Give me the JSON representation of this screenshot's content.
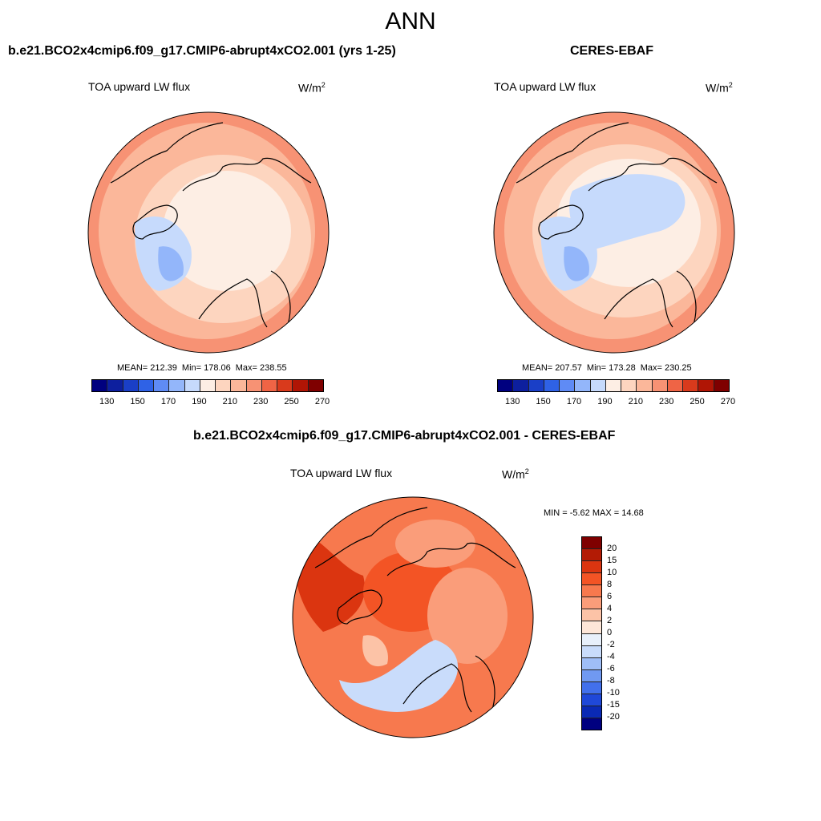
{
  "figure": {
    "season": "ANN"
  },
  "panels": {
    "top_left": {
      "title": "b.e21.BCO2x4cmip6.f09_g17.CMIP6-abrupt4xCO2.001 (yrs 1-25)",
      "variable": "TOA upward LW flux",
      "units_base": "W/m",
      "units_exp": "2",
      "stats": {
        "mean": "MEAN= 212.39",
        "min": "Min= 178.06",
        "max": "Max= 238.55"
      }
    },
    "top_right": {
      "title": "CERES-EBAF",
      "variable": "TOA upward LW flux",
      "units_base": "W/m",
      "units_exp": "2",
      "stats": {
        "mean": "MEAN= 207.57",
        "min": "Min= 173.28",
        "max": "Max= 230.25"
      }
    },
    "bottom": {
      "title": "b.e21.BCO2x4cmip6.f09_g17.CMIP6-abrupt4xCO2.001 - CERES-EBAF",
      "variable": "TOA upward LW flux",
      "units_base": "W/m",
      "units_exp": "2",
      "minmax": "MIN =  -5.62 MAX =  14.68"
    }
  },
  "abs_colorbar": {
    "labels": [
      "130",
      "150",
      "170",
      "190",
      "210",
      "230",
      "250",
      "270"
    ],
    "colors": [
      "#00007f",
      "#0d1f9e",
      "#1a3fc7",
      "#2f62e6",
      "#5f8bf5",
      "#93b6fa",
      "#c6dafc",
      "#fdeee4",
      "#fdd5bf",
      "#fbb79a",
      "#f79274",
      "#ef6445",
      "#d93a1c",
      "#b01505",
      "#7f0000"
    ]
  },
  "diff_colorbar": {
    "labels": [
      "20",
      "15",
      "10",
      "8",
      "6",
      "4",
      "2",
      "0",
      "-2",
      "-4",
      "-6",
      "-8",
      "-10",
      "-15",
      "-20"
    ],
    "colors": [
      "#7f0000",
      "#b31b05",
      "#db3510",
      "#f35425",
      "#f7794e",
      "#fa9d7a",
      "#fcc3a7",
      "#fde6d8",
      "#e8f0fb",
      "#c9dcfb",
      "#9fbef7",
      "#7099f1",
      "#4270ec",
      "#1f48d9",
      "#0a29b5",
      "#000080"
    ]
  }
}
